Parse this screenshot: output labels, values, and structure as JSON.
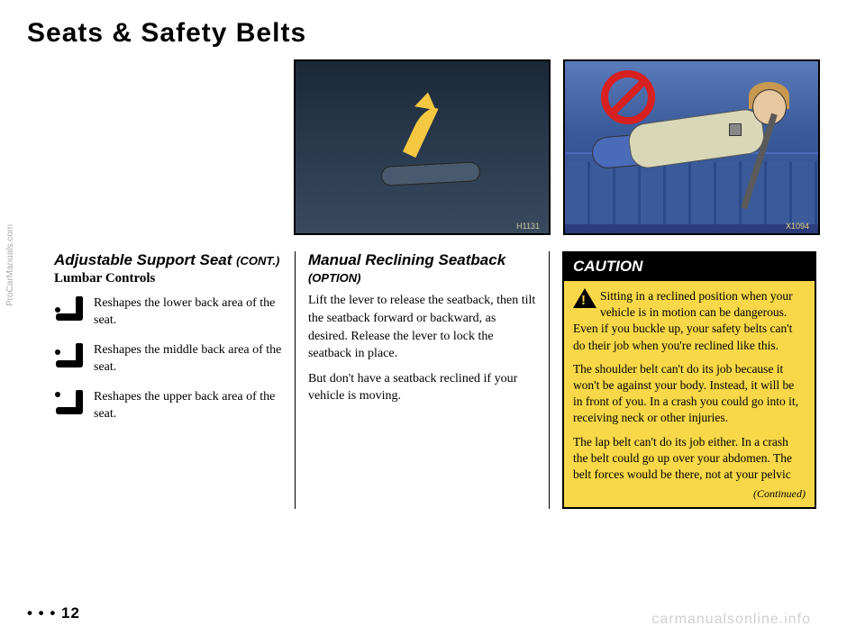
{
  "title": "Seats & Safety Belts",
  "images": {
    "seat_label": "H1131",
    "recline_label": "X1094"
  },
  "col1": {
    "header": "Adjustable Support Seat",
    "cont": "(CONT.)",
    "subhead": "Lumbar Controls",
    "items": [
      "Reshapes the lower back area of the seat.",
      "Reshapes the middle back area of the seat.",
      "Reshapes the upper back area of the seat."
    ]
  },
  "col2": {
    "header": "Manual Reclining Seatback",
    "option": "(OPTION)",
    "p1": "Lift the lever to release the seatback, then tilt the seatback forward or backward, as desired. Release the lever to lock the seatback in place.",
    "p2": "But don't have a seatback reclined if your vehicle is moving."
  },
  "caution": {
    "title": "CAUTION",
    "p1": "Sitting in a reclined position when your vehicle is in motion can be dangerous. Even if you buckle up, your safety belts can't do their job when you're reclined like this.",
    "p2": "The shoulder belt can't do its job because it won't be against your body. Instead, it will be in front of you. In a crash you could go into it, receiving neck or other injuries.",
    "p3": "The lap belt can't do its job either. In a crash the belt could go up over your abdomen. The belt forces would be there, not at your pelvic",
    "continued": "(Continued)"
  },
  "page_num": "• • • 12",
  "sidebar": "ProCarManuals.com",
  "watermark": "carmanualsonline.info",
  "colors": {
    "caution_bg": "#f8d848",
    "no_symbol": "#d82020",
    "arrow": "#f5c842"
  }
}
